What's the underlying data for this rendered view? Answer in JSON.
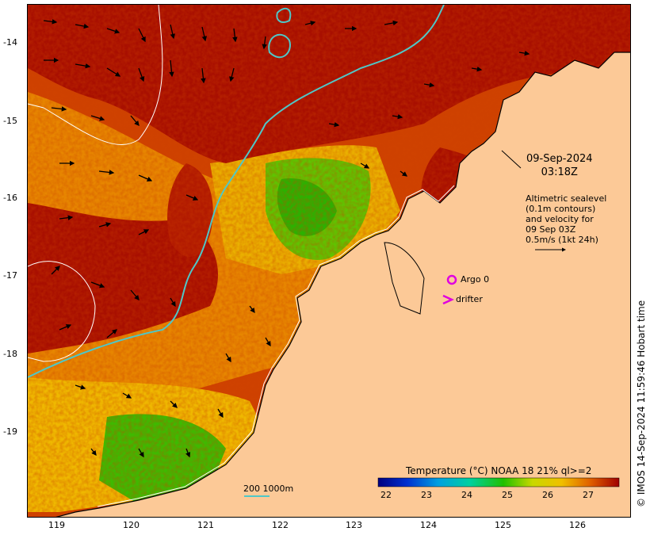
{
  "map": {
    "date": "09-Sep-2024",
    "time": "03:18Z",
    "legend_lines": [
      "Altimetric sealevel",
      "(0.1m contours)",
      "and velocity for",
      "09 Sep 03Z",
      "0.5m/s (1kt 24h)"
    ],
    "argo_label": "Argo 0",
    "drifter_label": "drifter",
    "colorbar_title": "Temperature (°C) NOAA 18 21% ql>=2",
    "colorbar_ticks": [
      "22",
      "23",
      "24",
      "25",
      "26",
      "27"
    ],
    "scale_label": "200  1000m",
    "side_stamp": "© IMOS 14-Sep-2024 11:59:46 Hobart time",
    "lat_labels": [
      "-14",
      "-15",
      "-16",
      "-17",
      "-18",
      "-19"
    ],
    "lon_labels": [
      "119",
      "120",
      "121",
      "122",
      "123",
      "124",
      "125",
      "126"
    ],
    "colors": {
      "land": "#fcc997",
      "hot": "#a80f00",
      "warm": "#d34a00",
      "orange": "#e98a00",
      "yellow": "#f1c400",
      "green": "#29c000",
      "isobath": "#4fc7c7",
      "argo": "#e000e0"
    }
  }
}
